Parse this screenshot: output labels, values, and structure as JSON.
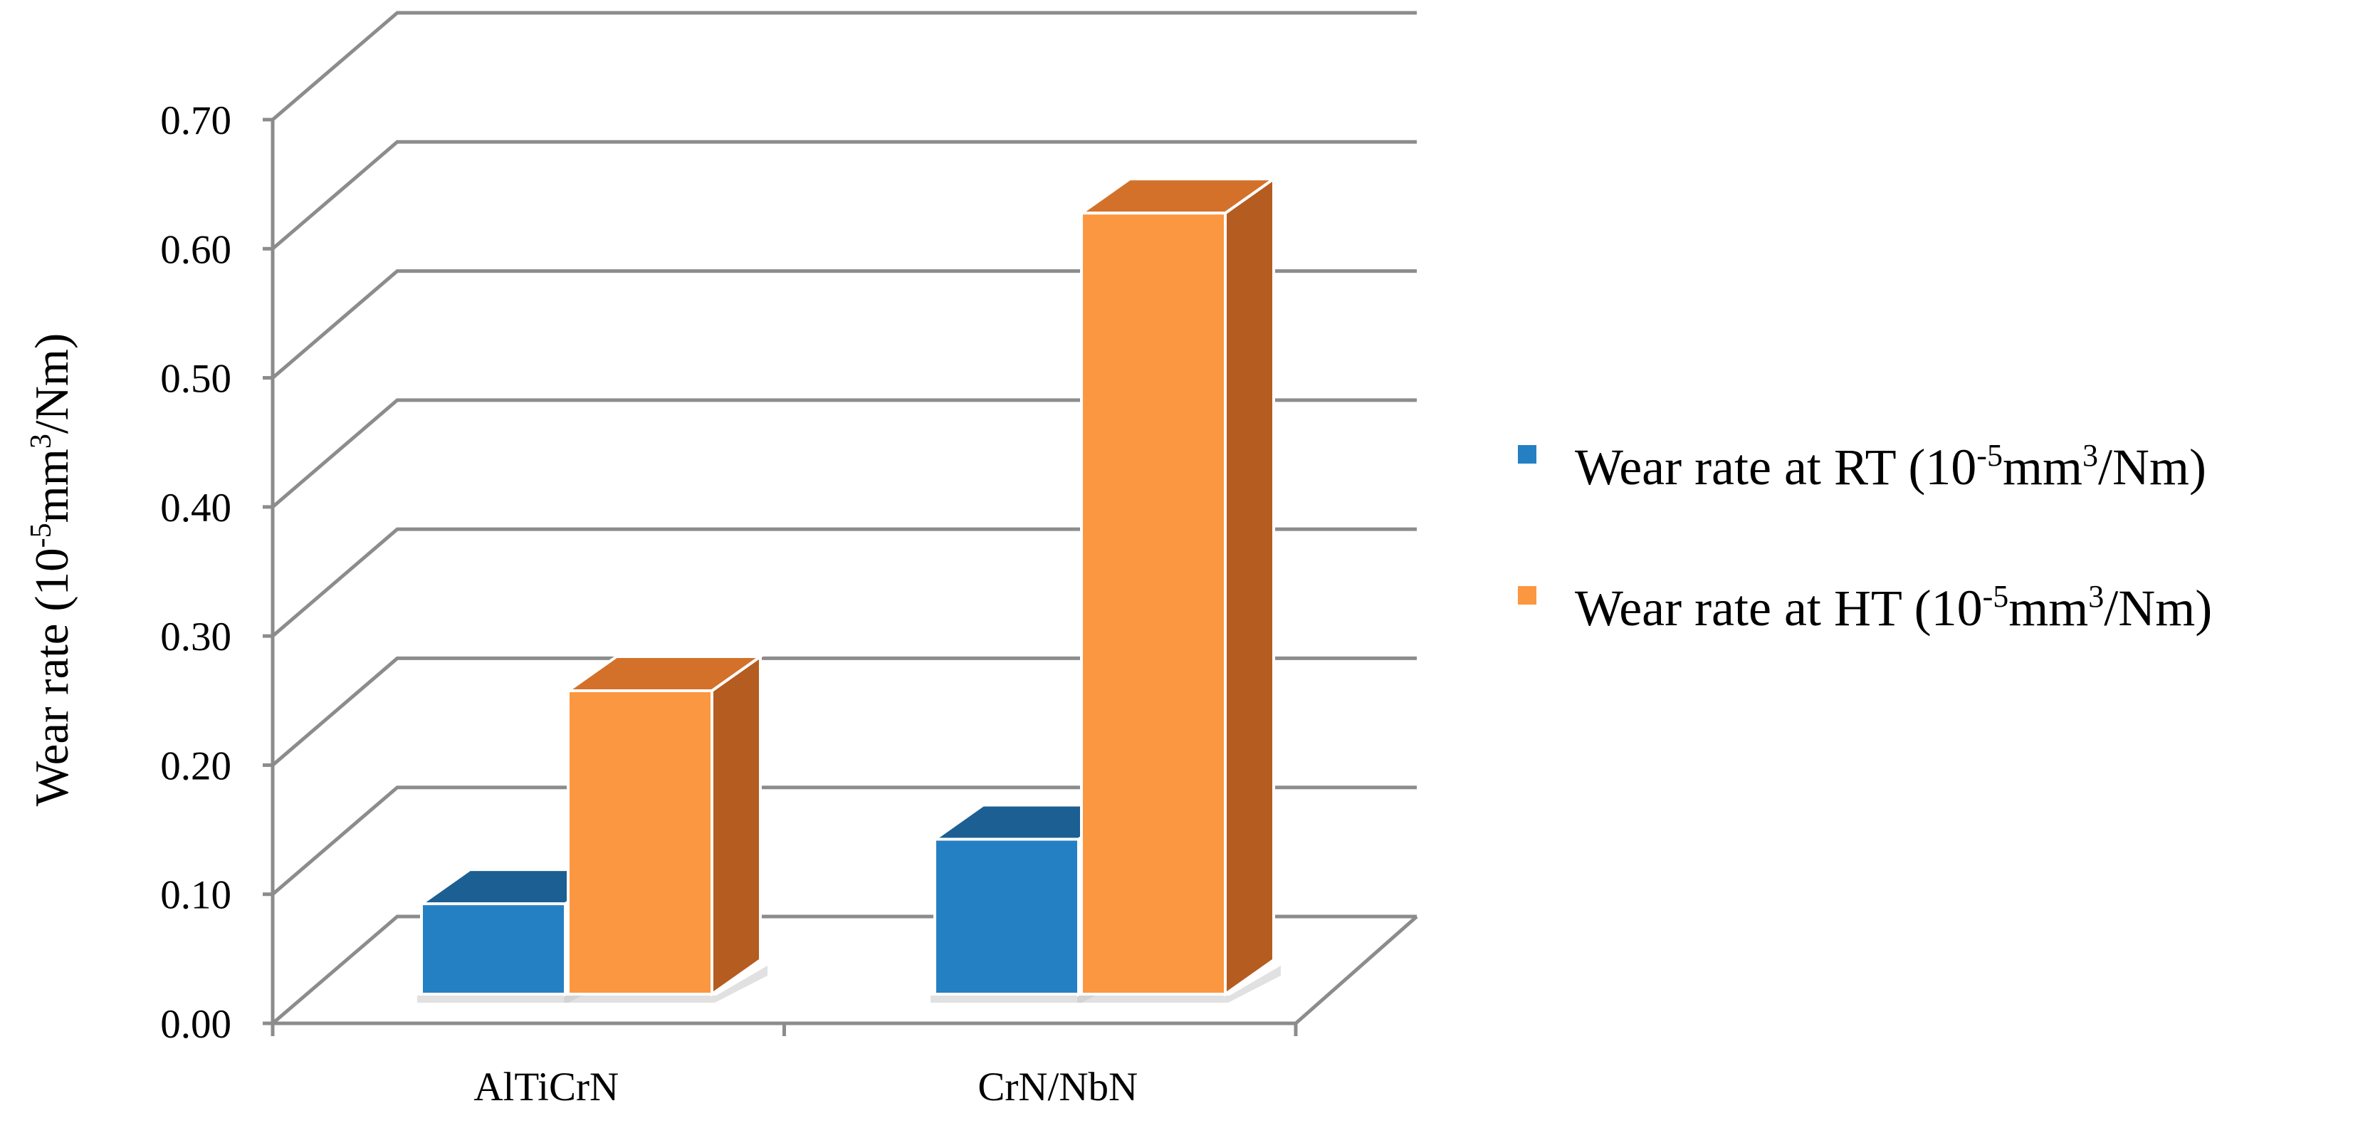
{
  "chart_data": {
    "type": "bar",
    "categories": [
      "AlTiCrN",
      "CrN/NbN"
    ],
    "series": [
      {
        "name": "Wear rate at RT",
        "name_unit": {
          "base": "(10",
          "exp1": "-5",
          "mid": "mm",
          "exp2": "3",
          "tail": "/Nm)"
        },
        "values": [
          0.07,
          0.12
        ],
        "color": "#2580c3",
        "top_color": "#1c5f92",
        "side_color": "#1a5788"
      },
      {
        "name": "Wear rate at HT",
        "name_unit": {
          "base": "(10",
          "exp1": "-5",
          "mid": "mm",
          "exp2": "3",
          "tail": "/Nm)"
        },
        "values": [
          0.235,
          0.605
        ],
        "color": "#fb9741",
        "top_color": "#d3712a",
        "side_color": "#b55c20"
      }
    ],
    "yticks": [
      "0.00",
      "0.10",
      "0.20",
      "0.30",
      "0.40",
      "0.50",
      "0.60",
      "0.70"
    ],
    "ylim": [
      0,
      0.7
    ],
    "ylabel": {
      "base": "Wear rate (10",
      "exp1": "-5",
      "mid": "mm",
      "exp2": "3",
      "tail": "/Nm)"
    },
    "grid": true,
    "legend": "right",
    "projection": "3d"
  }
}
